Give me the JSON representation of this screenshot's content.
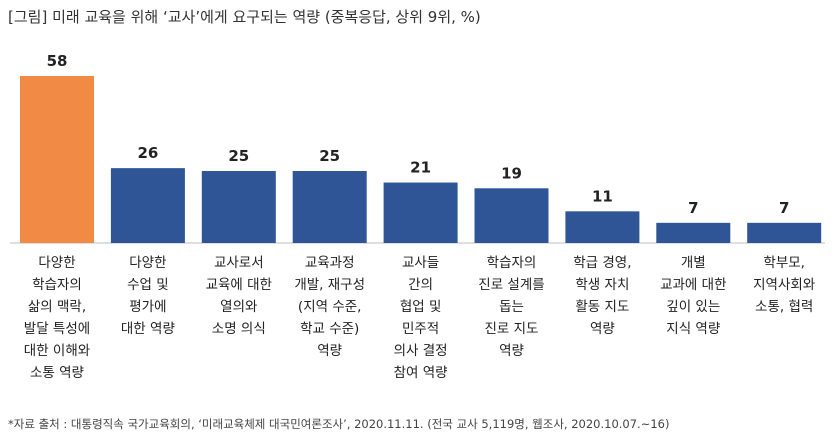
{
  "chart_data": {
    "type": "bar",
    "title": "[그림] 미래 교육을 위해 ‘교사’에게 요구되는 역량 (중복응답, 상위 9위, %)",
    "categories": [
      "다양한\n학습자의\n삶의 맥락,\n발달 특성에\n대한 이해와\n소통 역량",
      "다양한\n수업 및\n평가에\n대한 역량",
      "교사로서\n교육에 대한\n열의와\n소명 의식",
      "교육과정\n개발, 재구성\n(지역 수준,\n학교 수준)\n역량",
      "교사들\n간의\n협업 및\n민주적\n의사 결정\n참여 역량",
      "학습자의\n진로 설계를\n돕는\n진로 지도\n역량",
      "학급 경영,\n학생 자치\n활동 지도\n역량",
      "개별\n교과에 대한\n깊이 있는\n지식 역량",
      "학부모,\n지역사회와\n소통, 협력"
    ],
    "values": [
      58,
      26,
      25,
      25,
      21,
      19,
      11,
      7,
      7
    ],
    "value_labels": [
      "58",
      "26",
      "25",
      "25",
      "21",
      "19",
      "11",
      "7",
      "7"
    ],
    "ylim": [
      0,
      58
    ],
    "grid": false,
    "colors": {
      "highlight": "#F08A45",
      "default": "#2F5597",
      "axis": "#BFBFBF"
    }
  },
  "source_note": "*자료 출처 : 대통령직속 국가교육회의, ‘미래교육체제 대국민여론조사’, 2020.11.11. (전국 교사 5,119명, 웹조사, 2020.10.07.~16)"
}
